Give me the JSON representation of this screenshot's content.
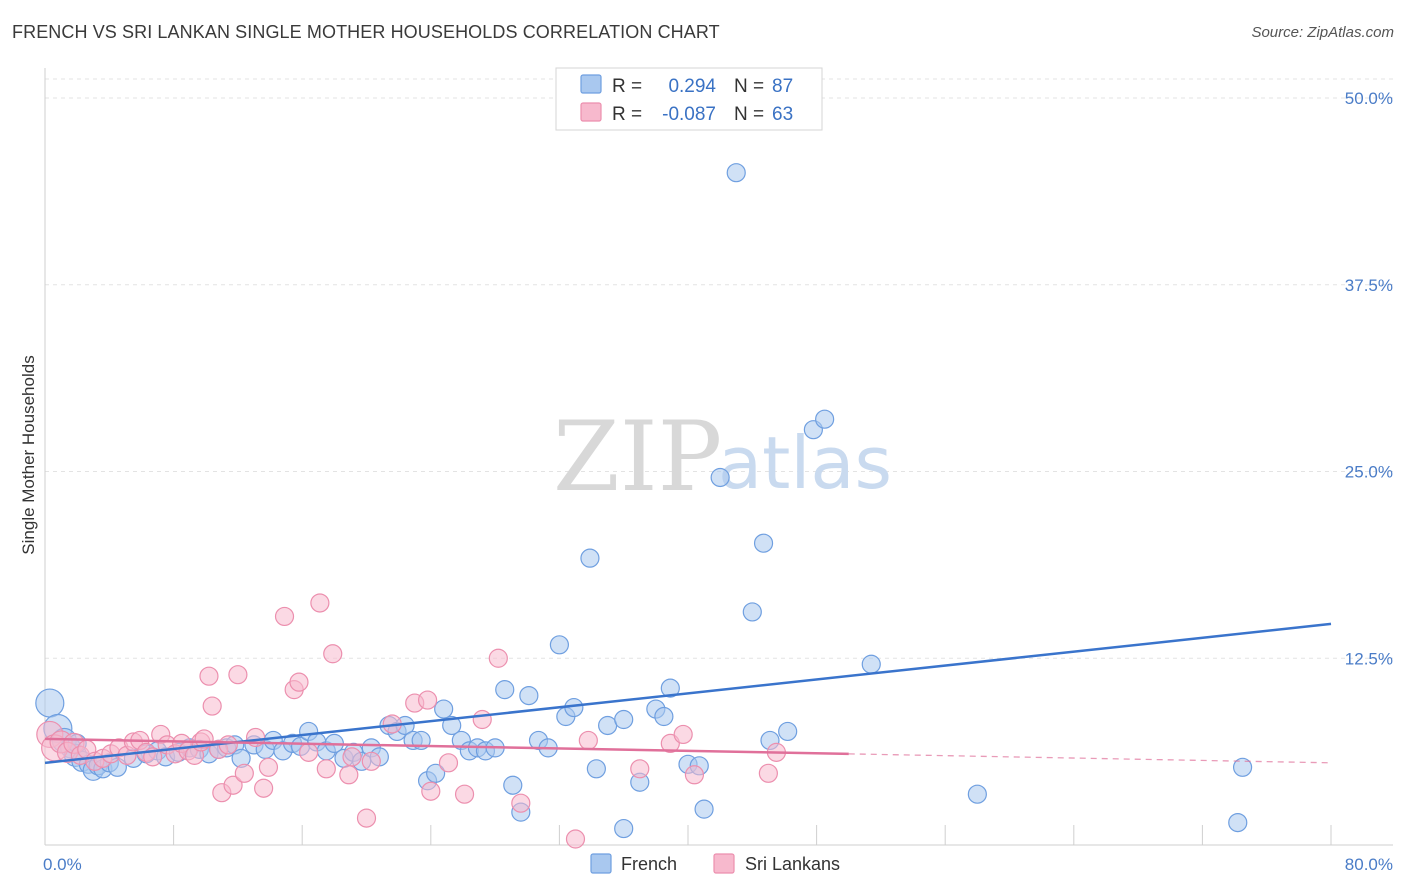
{
  "header": {
    "title": "FRENCH VS SRI LANKAN SINGLE MOTHER HOUSEHOLDS CORRELATION CHART",
    "source": "Source: ZipAtlas.com"
  },
  "watermark": {
    "zip": "ZIP",
    "atlas": "atlas"
  },
  "legend": {
    "entries": [
      {
        "r_label": "R =",
        "r_value": "0.294",
        "n_label": "N =",
        "n_value": "87",
        "color": "#a9c8ef",
        "stroke": "#6f9fe0"
      },
      {
        "r_label": "R =",
        "r_value": "-0.087",
        "n_label": "N =",
        "n_value": "63",
        "color": "#f7b9cd",
        "stroke": "#ec8fae"
      }
    ]
  },
  "bottom_legend": [
    {
      "label": "French",
      "color": "#a9c8ef",
      "stroke": "#6f9fe0"
    },
    {
      "label": "Sri Lankans",
      "color": "#f7b9cd",
      "stroke": "#ec8fae"
    }
  ],
  "chart_data": {
    "type": "scatter",
    "title": "FRENCH VS SRI LANKAN SINGLE MOTHER HOUSEHOLDS CORRELATION CHART",
    "xlabel": "",
    "ylabel": "Single Mother Households",
    "xlim": [
      0,
      80
    ],
    "ylim": [
      0,
      50
    ],
    "x_tick_labels": [
      "0.0%",
      "80.0%"
    ],
    "y_ticks": [
      12.5,
      25.0,
      37.5,
      50.0
    ],
    "y_tick_labels": [
      "12.5%",
      "25.0%",
      "37.5%",
      "50.0%"
    ],
    "grid": true,
    "legend_position": "top-center",
    "series": [
      {
        "name": "French",
        "color": "#6f9fe0",
        "fill": "#a9c8ef",
        "trend": {
          "x": [
            0,
            80
          ],
          "y": [
            5.5,
            14.8
          ],
          "color": "#3a74cc"
        },
        "points": [
          [
            0.3,
            9.5,
            14
          ],
          [
            0.8,
            7.8,
            14
          ],
          [
            1.2,
            7.0,
            12
          ],
          [
            1.6,
            6.5,
            10
          ],
          [
            1.9,
            6.0,
            11
          ],
          [
            2.3,
            5.6,
            10
          ],
          [
            2.7,
            5.4,
            9
          ],
          [
            3.0,
            5.0,
            10
          ],
          [
            3.3,
            5.3,
            9
          ],
          [
            3.6,
            5.1,
            9
          ],
          [
            4.0,
            5.5,
            9
          ],
          [
            4.5,
            5.2,
            9
          ],
          [
            5.5,
            5.8,
            9
          ],
          [
            6.3,
            6.1,
            9
          ],
          [
            7.0,
            6.3,
            9
          ],
          [
            7.5,
            5.9,
            9
          ],
          [
            8.3,
            6.2,
            9
          ],
          [
            9.0,
            6.5,
            9
          ],
          [
            9.6,
            6.4,
            9
          ],
          [
            10.2,
            6.1,
            9
          ],
          [
            10.8,
            6.4,
            9
          ],
          [
            11.3,
            6.5,
            9
          ],
          [
            11.8,
            6.7,
            9
          ],
          [
            12.2,
            5.8,
            9
          ],
          [
            13.0,
            6.7,
            9
          ],
          [
            13.7,
            6.4,
            9
          ],
          [
            14.2,
            7.0,
            9
          ],
          [
            14.8,
            6.3,
            9
          ],
          [
            15.4,
            6.8,
            9
          ],
          [
            15.9,
            6.6,
            9
          ],
          [
            16.4,
            7.6,
            9
          ],
          [
            16.9,
            6.9,
            9
          ],
          [
            17.5,
            6.3,
            9
          ],
          [
            18.0,
            6.8,
            9
          ],
          [
            18.6,
            5.8,
            9
          ],
          [
            19.2,
            6.2,
            9
          ],
          [
            19.7,
            5.6,
            9
          ],
          [
            20.3,
            6.5,
            9
          ],
          [
            20.8,
            5.9,
            9
          ],
          [
            21.4,
            8.0,
            9
          ],
          [
            21.9,
            7.6,
            9
          ],
          [
            22.4,
            8.0,
            9
          ],
          [
            22.9,
            7.0,
            9
          ],
          [
            23.4,
            7.0,
            9
          ],
          [
            23.8,
            4.3,
            9
          ],
          [
            24.3,
            4.8,
            9
          ],
          [
            24.8,
            9.1,
            9
          ],
          [
            25.3,
            8.0,
            9
          ],
          [
            25.9,
            7.0,
            9
          ],
          [
            26.4,
            6.3,
            9
          ],
          [
            26.9,
            6.5,
            9
          ],
          [
            27.4,
            6.3,
            9
          ],
          [
            28.0,
            6.5,
            9
          ],
          [
            28.6,
            10.4,
            9
          ],
          [
            29.1,
            4.0,
            9
          ],
          [
            29.6,
            2.2,
            9
          ],
          [
            30.1,
            10.0,
            9
          ],
          [
            30.7,
            7.0,
            9
          ],
          [
            31.3,
            6.5,
            9
          ],
          [
            32.0,
            13.4,
            9
          ],
          [
            32.4,
            8.6,
            9
          ],
          [
            32.9,
            9.2,
            9
          ],
          [
            33.9,
            19.2,
            9
          ],
          [
            34.3,
            5.1,
            9
          ],
          [
            35.0,
            8.0,
            9
          ],
          [
            36.0,
            8.4,
            9
          ],
          [
            37.0,
            4.2,
            9
          ],
          [
            36.0,
            1.1,
            9
          ],
          [
            38.0,
            9.1,
            9
          ],
          [
            38.5,
            8.6,
            9
          ],
          [
            38.9,
            10.5,
            9
          ],
          [
            40.0,
            5.4,
            9
          ],
          [
            41.0,
            2.4,
            9
          ],
          [
            40.7,
            5.3,
            9
          ],
          [
            42.0,
            24.6,
            9
          ],
          [
            43.0,
            45.0,
            9
          ],
          [
            44.0,
            15.6,
            9
          ],
          [
            44.7,
            20.2,
            9
          ],
          [
            45.1,
            7.0,
            9
          ],
          [
            46.2,
            7.6,
            9
          ],
          [
            47.8,
            27.8,
            9
          ],
          [
            48.5,
            28.5,
            9
          ],
          [
            51.4,
            12.1,
            9
          ],
          [
            58.0,
            3.4,
            9
          ],
          [
            74.2,
            1.5,
            9
          ],
          [
            74.5,
            5.2,
            9
          ],
          [
            2.0,
            6.8,
            9
          ]
        ]
      },
      {
        "name": "Sri Lankans",
        "color": "#ec8fae",
        "fill": "#f7b9cd",
        "trend": {
          "x": [
            0,
            50
          ],
          "y": [
            7.1,
            6.1
          ],
          "dash_to": [
            80,
            5.5
          ],
          "color": "#e0709a"
        },
        "points": [
          [
            0.3,
            7.4,
            13
          ],
          [
            0.6,
            6.5,
            13
          ],
          [
            1.0,
            6.9,
            11
          ],
          [
            1.4,
            6.2,
            10
          ],
          [
            1.8,
            6.8,
            10
          ],
          [
            2.2,
            6.0,
            9
          ],
          [
            2.6,
            6.4,
            9
          ],
          [
            3.1,
            5.6,
            9
          ],
          [
            3.6,
            5.8,
            9
          ],
          [
            4.1,
            6.1,
            9
          ],
          [
            4.6,
            6.5,
            9
          ],
          [
            5.1,
            6.0,
            9
          ],
          [
            5.5,
            6.9,
            9
          ],
          [
            5.9,
            7.0,
            9
          ],
          [
            6.3,
            6.2,
            9
          ],
          [
            6.7,
            5.9,
            9
          ],
          [
            7.2,
            7.4,
            9
          ],
          [
            7.6,
            6.7,
            9
          ],
          [
            8.1,
            6.1,
            9
          ],
          [
            8.5,
            6.8,
            9
          ],
          [
            8.9,
            6.3,
            9
          ],
          [
            9.3,
            6.0,
            9
          ],
          [
            9.7,
            6.9,
            9
          ],
          [
            9.9,
            7.1,
            9
          ],
          [
            10.2,
            11.3,
            9
          ],
          [
            10.4,
            9.3,
            9
          ],
          [
            10.8,
            6.4,
            9
          ],
          [
            11.0,
            3.5,
            9
          ],
          [
            11.4,
            6.7,
            9
          ],
          [
            11.7,
            4.0,
            9
          ],
          [
            12.0,
            11.4,
            9
          ],
          [
            12.4,
            4.8,
            9
          ],
          [
            13.1,
            7.2,
            9
          ],
          [
            13.6,
            3.8,
            9
          ],
          [
            13.9,
            5.2,
            9
          ],
          [
            14.9,
            15.3,
            9
          ],
          [
            15.5,
            10.4,
            9
          ],
          [
            15.8,
            10.9,
            9
          ],
          [
            16.4,
            6.2,
            9
          ],
          [
            17.1,
            16.2,
            9
          ],
          [
            17.5,
            5.1,
            9
          ],
          [
            17.9,
            12.8,
            9
          ],
          [
            18.9,
            4.7,
            9
          ],
          [
            19.1,
            5.9,
            9
          ],
          [
            20.0,
            1.8,
            9
          ],
          [
            20.3,
            5.6,
            9
          ],
          [
            21.6,
            8.1,
            9
          ],
          [
            23.0,
            9.5,
            9
          ],
          [
            23.8,
            9.7,
            9
          ],
          [
            24.0,
            3.6,
            9
          ],
          [
            25.1,
            5.5,
            9
          ],
          [
            26.1,
            3.4,
            9
          ],
          [
            27.2,
            8.4,
            9
          ],
          [
            28.2,
            12.5,
            9
          ],
          [
            29.6,
            2.8,
            9
          ],
          [
            33.0,
            0.4,
            9
          ],
          [
            33.8,
            7.0,
            9
          ],
          [
            37.0,
            5.1,
            9
          ],
          [
            38.9,
            6.8,
            9
          ],
          [
            39.7,
            7.4,
            9
          ],
          [
            40.4,
            4.7,
            9
          ],
          [
            45.0,
            4.8,
            9
          ],
          [
            45.5,
            6.2,
            9
          ]
        ]
      }
    ]
  }
}
